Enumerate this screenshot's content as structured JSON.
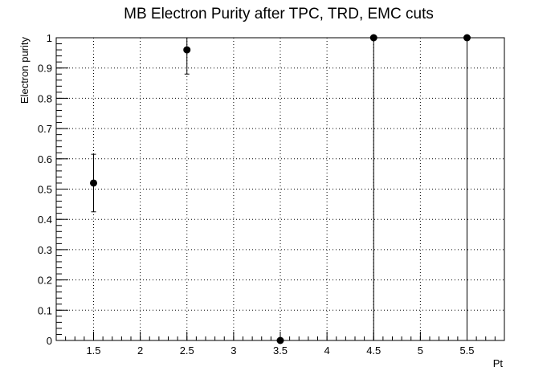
{
  "chart_data": {
    "type": "scatter",
    "title": "MB Electron Purity after TPC, TRD, EMC cuts",
    "xlabel": "Pt",
    "ylabel": "Electron purity",
    "xlim": [
      1.1,
      5.9
    ],
    "ylim": [
      0,
      1
    ],
    "grid": true,
    "x_ticks": [
      "1.5",
      "2",
      "2.5",
      "3",
      "3.5",
      "4",
      "4.5",
      "5",
      "5.5"
    ],
    "y_ticks": [
      "0",
      "0.1",
      "0.2",
      "0.3",
      "0.4",
      "0.5",
      "0.6",
      "0.7",
      "0.8",
      "0.9",
      "1"
    ],
    "series": [
      {
        "points": [
          {
            "x": 1.5,
            "y": 0.52,
            "err_low": 0.095,
            "err_high": 0.095
          },
          {
            "x": 2.5,
            "y": 0.96,
            "err_low": 0.08,
            "err_high": 0.04
          },
          {
            "x": 3.5,
            "y": 0.0,
            "err_low": 0.0,
            "err_high": 0.0
          },
          {
            "x": 4.5,
            "y": 1.0,
            "err_low": 1.0,
            "err_high": 0.0
          },
          {
            "x": 5.5,
            "y": 1.0,
            "err_low": 1.0,
            "err_high": 0.0
          }
        ]
      }
    ]
  }
}
